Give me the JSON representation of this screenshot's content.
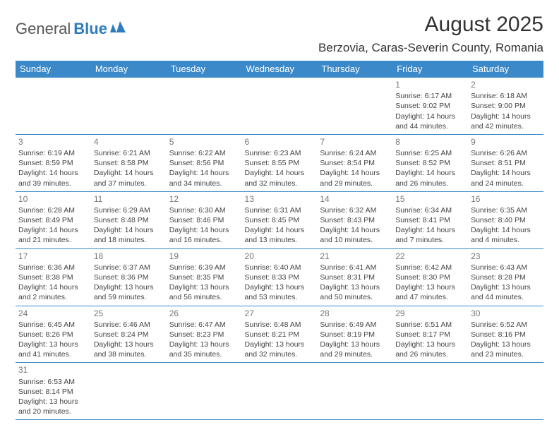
{
  "logo": {
    "text1": "General",
    "text2": "Blue"
  },
  "title": "August 2025",
  "location": "Berzovia, Caras-Severin County, Romania",
  "colors": {
    "header_bg": "#3b89c9",
    "header_fg": "#ffffff",
    "border": "#3b89c9",
    "text": "#444444",
    "daynum": "#777777",
    "logo_blue": "#2f7bbf"
  },
  "day_headers": [
    "Sunday",
    "Monday",
    "Tuesday",
    "Wednesday",
    "Thursday",
    "Friday",
    "Saturday"
  ],
  "weeks": [
    [
      null,
      null,
      null,
      null,
      null,
      {
        "n": "1",
        "sr": "6:17 AM",
        "ss": "9:02 PM",
        "dl": "14 hours and 44 minutes."
      },
      {
        "n": "2",
        "sr": "6:18 AM",
        "ss": "9:00 PM",
        "dl": "14 hours and 42 minutes."
      }
    ],
    [
      {
        "n": "3",
        "sr": "6:19 AM",
        "ss": "8:59 PM",
        "dl": "14 hours and 39 minutes."
      },
      {
        "n": "4",
        "sr": "6:21 AM",
        "ss": "8:58 PM",
        "dl": "14 hours and 37 minutes."
      },
      {
        "n": "5",
        "sr": "6:22 AM",
        "ss": "8:56 PM",
        "dl": "14 hours and 34 minutes."
      },
      {
        "n": "6",
        "sr": "6:23 AM",
        "ss": "8:55 PM",
        "dl": "14 hours and 32 minutes."
      },
      {
        "n": "7",
        "sr": "6:24 AM",
        "ss": "8:54 PM",
        "dl": "14 hours and 29 minutes."
      },
      {
        "n": "8",
        "sr": "6:25 AM",
        "ss": "8:52 PM",
        "dl": "14 hours and 26 minutes."
      },
      {
        "n": "9",
        "sr": "6:26 AM",
        "ss": "8:51 PM",
        "dl": "14 hours and 24 minutes."
      }
    ],
    [
      {
        "n": "10",
        "sr": "6:28 AM",
        "ss": "8:49 PM",
        "dl": "14 hours and 21 minutes."
      },
      {
        "n": "11",
        "sr": "6:29 AM",
        "ss": "8:48 PM",
        "dl": "14 hours and 18 minutes."
      },
      {
        "n": "12",
        "sr": "6:30 AM",
        "ss": "8:46 PM",
        "dl": "14 hours and 16 minutes."
      },
      {
        "n": "13",
        "sr": "6:31 AM",
        "ss": "8:45 PM",
        "dl": "14 hours and 13 minutes."
      },
      {
        "n": "14",
        "sr": "6:32 AM",
        "ss": "8:43 PM",
        "dl": "14 hours and 10 minutes."
      },
      {
        "n": "15",
        "sr": "6:34 AM",
        "ss": "8:41 PM",
        "dl": "14 hours and 7 minutes."
      },
      {
        "n": "16",
        "sr": "6:35 AM",
        "ss": "8:40 PM",
        "dl": "14 hours and 4 minutes."
      }
    ],
    [
      {
        "n": "17",
        "sr": "6:36 AM",
        "ss": "8:38 PM",
        "dl": "14 hours and 2 minutes."
      },
      {
        "n": "18",
        "sr": "6:37 AM",
        "ss": "8:36 PM",
        "dl": "13 hours and 59 minutes."
      },
      {
        "n": "19",
        "sr": "6:39 AM",
        "ss": "8:35 PM",
        "dl": "13 hours and 56 minutes."
      },
      {
        "n": "20",
        "sr": "6:40 AM",
        "ss": "8:33 PM",
        "dl": "13 hours and 53 minutes."
      },
      {
        "n": "21",
        "sr": "6:41 AM",
        "ss": "8:31 PM",
        "dl": "13 hours and 50 minutes."
      },
      {
        "n": "22",
        "sr": "6:42 AM",
        "ss": "8:30 PM",
        "dl": "13 hours and 47 minutes."
      },
      {
        "n": "23",
        "sr": "6:43 AM",
        "ss": "8:28 PM",
        "dl": "13 hours and 44 minutes."
      }
    ],
    [
      {
        "n": "24",
        "sr": "6:45 AM",
        "ss": "8:26 PM",
        "dl": "13 hours and 41 minutes."
      },
      {
        "n": "25",
        "sr": "6:46 AM",
        "ss": "8:24 PM",
        "dl": "13 hours and 38 minutes."
      },
      {
        "n": "26",
        "sr": "6:47 AM",
        "ss": "8:23 PM",
        "dl": "13 hours and 35 minutes."
      },
      {
        "n": "27",
        "sr": "6:48 AM",
        "ss": "8:21 PM",
        "dl": "13 hours and 32 minutes."
      },
      {
        "n": "28",
        "sr": "6:49 AM",
        "ss": "8:19 PM",
        "dl": "13 hours and 29 minutes."
      },
      {
        "n": "29",
        "sr": "6:51 AM",
        "ss": "8:17 PM",
        "dl": "13 hours and 26 minutes."
      },
      {
        "n": "30",
        "sr": "6:52 AM",
        "ss": "8:16 PM",
        "dl": "13 hours and 23 minutes."
      }
    ],
    [
      {
        "n": "31",
        "sr": "6:53 AM",
        "ss": "8:14 PM",
        "dl": "13 hours and 20 minutes."
      },
      null,
      null,
      null,
      null,
      null,
      null
    ]
  ],
  "labels": {
    "sunrise": "Sunrise:",
    "sunset": "Sunset:",
    "daylight": "Daylight:"
  }
}
